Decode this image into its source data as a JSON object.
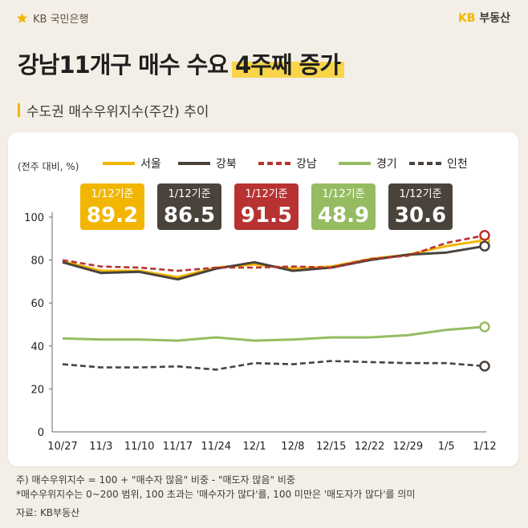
{
  "header": {
    "logo_text": "KB 국민은행",
    "brand_kb": "KB",
    "brand_name": "부동산"
  },
  "headline": {
    "main": "강남11개구 매수 수요",
    "highlight": "4주째 증가"
  },
  "subtitle": "수도권 매수우위지수(주간) 추이",
  "chart_data": {
    "type": "line",
    "unit_label": "(전주 대비, %)",
    "categories": [
      "10/27",
      "11/3",
      "11/10",
      "11/17",
      "11/24",
      "12/1",
      "12/8",
      "12/15",
      "12/22",
      "12/29",
      "1/5",
      "1/12"
    ],
    "ylim": [
      0,
      100
    ],
    "yticks": [
      0,
      20,
      40,
      60,
      80,
      100
    ],
    "series": [
      {
        "name": "서울",
        "color": "#f2b600",
        "dash": "solid",
        "values": [
          79.5,
          75.0,
          75.0,
          72.0,
          76.5,
          78.0,
          76.0,
          77.0,
          80.5,
          82.5,
          86.5,
          89.2
        ]
      },
      {
        "name": "강북",
        "color": "#4a433c",
        "dash": "solid",
        "values": [
          79.0,
          74.0,
          74.5,
          71.0,
          76.0,
          79.0,
          75.0,
          76.5,
          80.0,
          82.5,
          83.5,
          86.5
        ]
      },
      {
        "name": "강남",
        "color": "#b83232",
        "dash": "dashed",
        "values": [
          80.0,
          77.0,
          76.5,
          75.0,
          76.5,
          76.5,
          77.0,
          76.5,
          80.5,
          82.0,
          88.0,
          91.5
        ]
      },
      {
        "name": "경기",
        "color": "#96bc62",
        "dash": "solid",
        "values": [
          43.5,
          43.0,
          43.0,
          42.5,
          44.0,
          42.5,
          43.0,
          44.0,
          44.0,
          45.0,
          47.5,
          48.9
        ]
      },
      {
        "name": "인천",
        "color": "#4a433c",
        "dash": "dashed",
        "values": [
          31.5,
          30.0,
          30.0,
          30.5,
          29.0,
          32.0,
          31.5,
          33.0,
          32.5,
          32.0,
          32.0,
          30.6
        ]
      }
    ],
    "badges": [
      {
        "date": "1/12기준",
        "value": "89.2",
        "color": "#f2b600"
      },
      {
        "date": "1/12기준",
        "value": "86.5",
        "color": "#4a433c"
      },
      {
        "date": "1/12기준",
        "value": "91.5",
        "color": "#b83232"
      },
      {
        "date": "1/12기준",
        "value": "48.9",
        "color": "#96bc62"
      },
      {
        "date": "1/12기준",
        "value": "30.6",
        "color": "#4a433c"
      }
    ]
  },
  "footnotes": {
    "line1": "주) 매수우위지수 = 100 + \"매수자 많음\" 비중 - \"매도자 많음\" 비중",
    "line2": "*매수우위지수는 0~200 범위, 100 초과는 '매수자가 많다'를, 100 미만은 '매도자가 많다'를 의미",
    "source": "자료: KB부동산"
  }
}
